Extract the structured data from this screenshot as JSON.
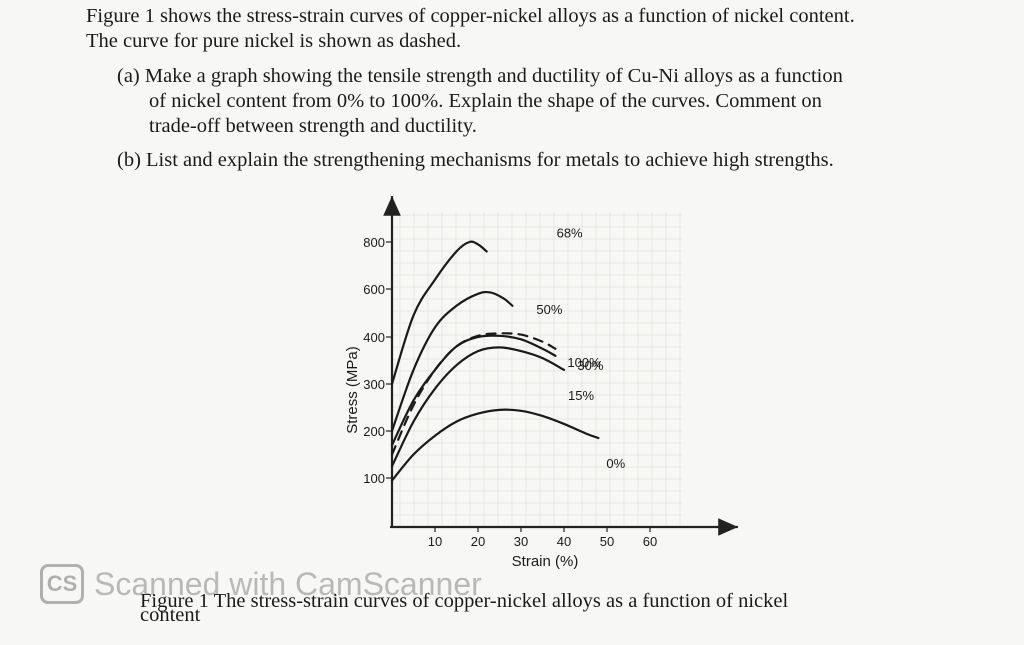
{
  "intro": [
    "Figure 1 shows the stress-strain curves of copper-nickel alloys as a function of nickel content.",
    "The curve for pure nickel is shown as dashed."
  ],
  "part_a": [
    "(a) Make a graph showing the tensile strength and ductility of Cu-Ni alloys as a function",
    "of nickel content from 0% to 100%. Explain the shape of the curves. Comment on",
    "trade-off between strength and ductility."
  ],
  "part_b": "(b) List and explain the strengthening mechanisms for metals to achieve high strengths.",
  "caption": {
    "line1": "Figure 1 The stress-strain curves of copper-nickel alloys as a function of nickel",
    "line2": "content"
  },
  "watermark": {
    "logo": "CS",
    "text": "Scanned with CamScanner"
  },
  "chart_data": {
    "type": "line",
    "xlabel": "Strain (%)",
    "ylabel": "Stress (MPa)",
    "x_ticks": [
      10,
      20,
      30,
      40,
      50,
      60
    ],
    "y_ticks": [
      100,
      200,
      300,
      400,
      600,
      800
    ],
    "series": [
      {
        "name": "68%",
        "dashed": false,
        "points": [
          [
            0,
            300
          ],
          [
            5,
            490
          ],
          [
            10,
            640
          ],
          [
            15,
            760
          ],
          [
            18,
            800
          ],
          [
            20,
            790
          ],
          [
            22,
            760
          ]
        ]
      },
      {
        "name": "50%",
        "dashed": false,
        "points": [
          [
            0,
            200
          ],
          [
            5,
            330
          ],
          [
            10,
            440
          ],
          [
            15,
            530
          ],
          [
            20,
            580
          ],
          [
            23,
            585
          ],
          [
            26,
            560
          ],
          [
            28,
            530
          ]
        ]
      },
      {
        "name": "30%",
        "dashed": false,
        "points": [
          [
            0,
            170
          ],
          [
            5,
            265
          ],
          [
            10,
            330
          ],
          [
            15,
            380
          ],
          [
            20,
            400
          ],
          [
            25,
            405
          ],
          [
            30,
            395
          ],
          [
            35,
            375
          ],
          [
            38,
            360
          ]
        ]
      },
      {
        "name": "100%",
        "dashed": true,
        "points": [
          [
            0,
            150
          ],
          [
            5,
            255
          ],
          [
            10,
            330
          ],
          [
            15,
            380
          ],
          [
            20,
            405
          ],
          [
            25,
            415
          ],
          [
            30,
            410
          ],
          [
            35,
            390
          ],
          [
            38,
            375
          ]
        ]
      },
      {
        "name": "15%",
        "dashed": false,
        "points": [
          [
            0,
            125
          ],
          [
            5,
            220
          ],
          [
            10,
            290
          ],
          [
            15,
            340
          ],
          [
            20,
            370
          ],
          [
            25,
            378
          ],
          [
            30,
            370
          ],
          [
            35,
            355
          ],
          [
            40,
            330
          ]
        ]
      },
      {
        "name": "0%",
        "dashed": false,
        "points": [
          [
            0,
            95
          ],
          [
            5,
            150
          ],
          [
            10,
            190
          ],
          [
            15,
            220
          ],
          [
            20,
            237
          ],
          [
            25,
            245
          ],
          [
            30,
            243
          ],
          [
            35,
            232
          ],
          [
            40,
            215
          ],
          [
            45,
            195
          ],
          [
            48,
            185
          ]
        ]
      }
    ]
  }
}
